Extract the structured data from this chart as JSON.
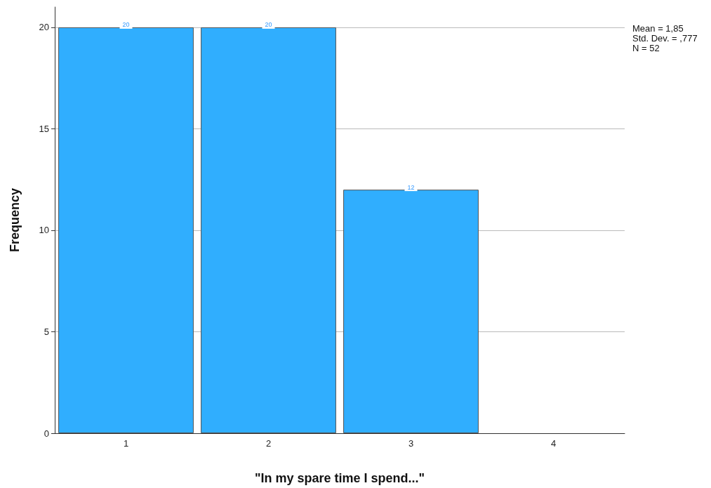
{
  "chart_data": {
    "type": "bar",
    "xlabel": "\"In my spare time I spend...\"",
    "ylabel": "Frequency",
    "categories": [
      "1",
      "2",
      "3",
      "4"
    ],
    "values": [
      20,
      20,
      12,
      0
    ],
    "value_labels": [
      "20",
      "20",
      "12",
      null
    ],
    "color": "#30aefe",
    "ylim": [
      0,
      21
    ],
    "yticks": [
      0,
      5,
      10,
      15,
      20
    ],
    "grid": "y",
    "annotations": [
      "Mean = 1,85",
      "Std. Dev. = ,777",
      "N = 52"
    ]
  }
}
